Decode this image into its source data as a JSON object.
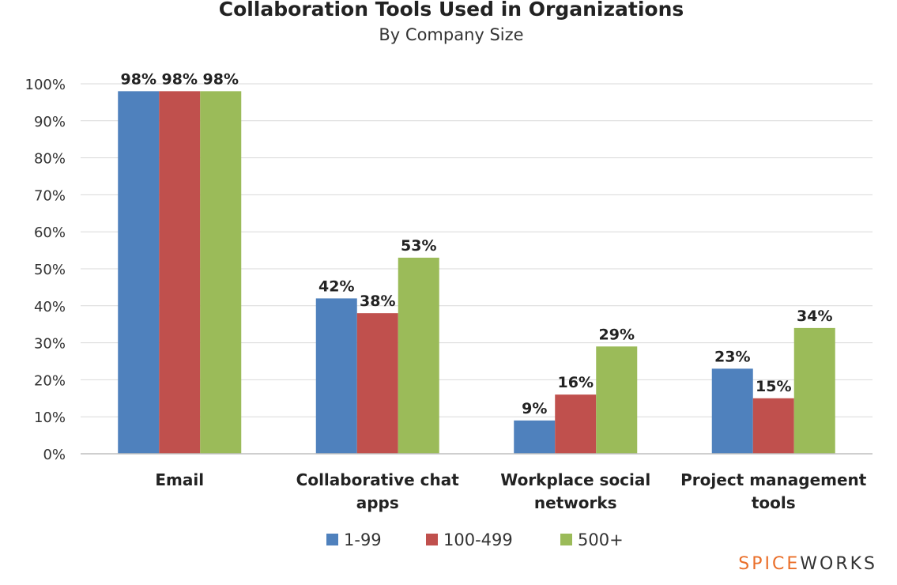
{
  "chart_data": {
    "type": "bar",
    "title": "Collaboration Tools Used in Organizations",
    "subtitle": "By Company Size",
    "categories": [
      [
        "Email"
      ],
      [
        "Collaborative chat",
        "apps"
      ],
      [
        "Workplace social",
        "networks"
      ],
      [
        "Project management",
        "tools"
      ]
    ],
    "series": [
      {
        "name": "1-99",
        "color": "#4f81bd",
        "values": [
          98,
          42,
          9,
          23
        ],
        "labels": [
          "98%",
          "42%",
          "9%",
          "23%"
        ]
      },
      {
        "name": "100-499",
        "color": "#c0504d",
        "values": [
          98,
          38,
          16,
          15
        ],
        "labels": [
          "98%",
          "38%",
          "16%",
          "15%"
        ]
      },
      {
        "name": "500+",
        "color": "#9bbb59",
        "values": [
          98,
          53,
          29,
          34
        ],
        "labels": [
          "98%",
          "53%",
          "29%",
          "34%"
        ]
      }
    ],
    "yticks": [
      "0%",
      "10%",
      "20%",
      "30%",
      "40%",
      "50%",
      "60%",
      "70%",
      "80%",
      "90%",
      "100%"
    ],
    "ylim": [
      0,
      100
    ],
    "grid": true,
    "legend_position": "bottom-center",
    "gridline_color": "#d9d9d9",
    "axis_color": "#bfbfbf"
  },
  "logo": {
    "part1": "SPICE",
    "part2": "WORKS",
    "color1": "#ea6f2a",
    "color2": "#333333"
  }
}
